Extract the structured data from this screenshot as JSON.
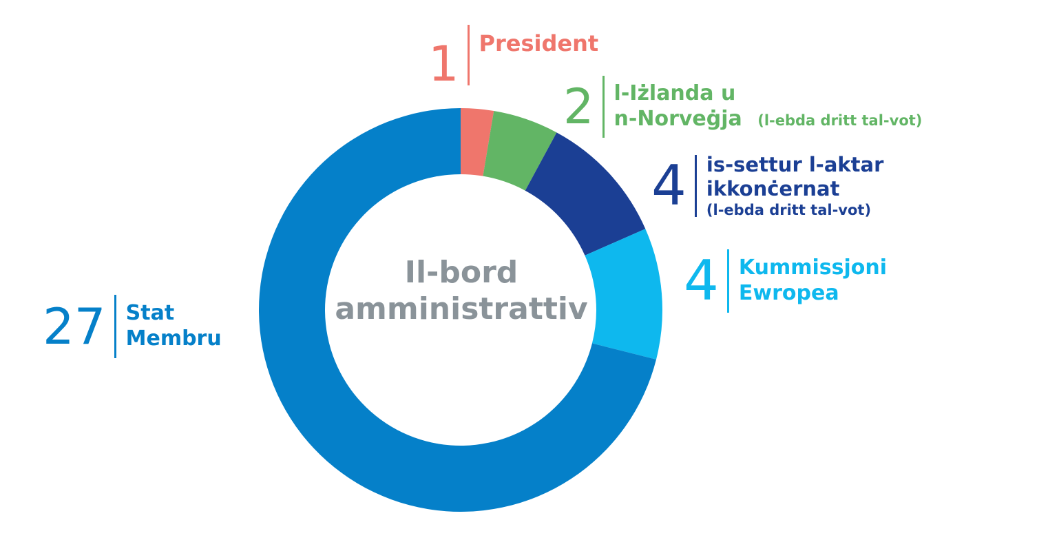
{
  "chart_data": {
    "type": "pie",
    "title": "Il-bord amministrattiv",
    "slices": [
      {
        "value": "1",
        "count": 1,
        "label": [
          "President"
        ],
        "note": "",
        "color": "#ef766c"
      },
      {
        "value": "2",
        "count": 2,
        "label": [
          "l-Iżlanda u",
          "n-Norveġja"
        ],
        "note": "(l-ebda dritt tal-vot)",
        "color": "#62b565"
      },
      {
        "value": "4",
        "count": 4,
        "label": [
          "is-settur l-aktar",
          "ikkonċernat"
        ],
        "note": "(l-ebda dritt tal-vot)",
        "color": "#1b3f94"
      },
      {
        "value": "4",
        "count": 4,
        "label": [
          "Kummissjoni",
          "Ewropea"
        ],
        "note": "",
        "color": "#0eb8ee"
      },
      {
        "value": "27",
        "count": 27,
        "label": [
          "Stat",
          "Membru"
        ],
        "note": "",
        "color": "#0580c9"
      }
    ]
  },
  "center": {
    "line1": "Il-bord",
    "line2": "amministrattiv"
  }
}
